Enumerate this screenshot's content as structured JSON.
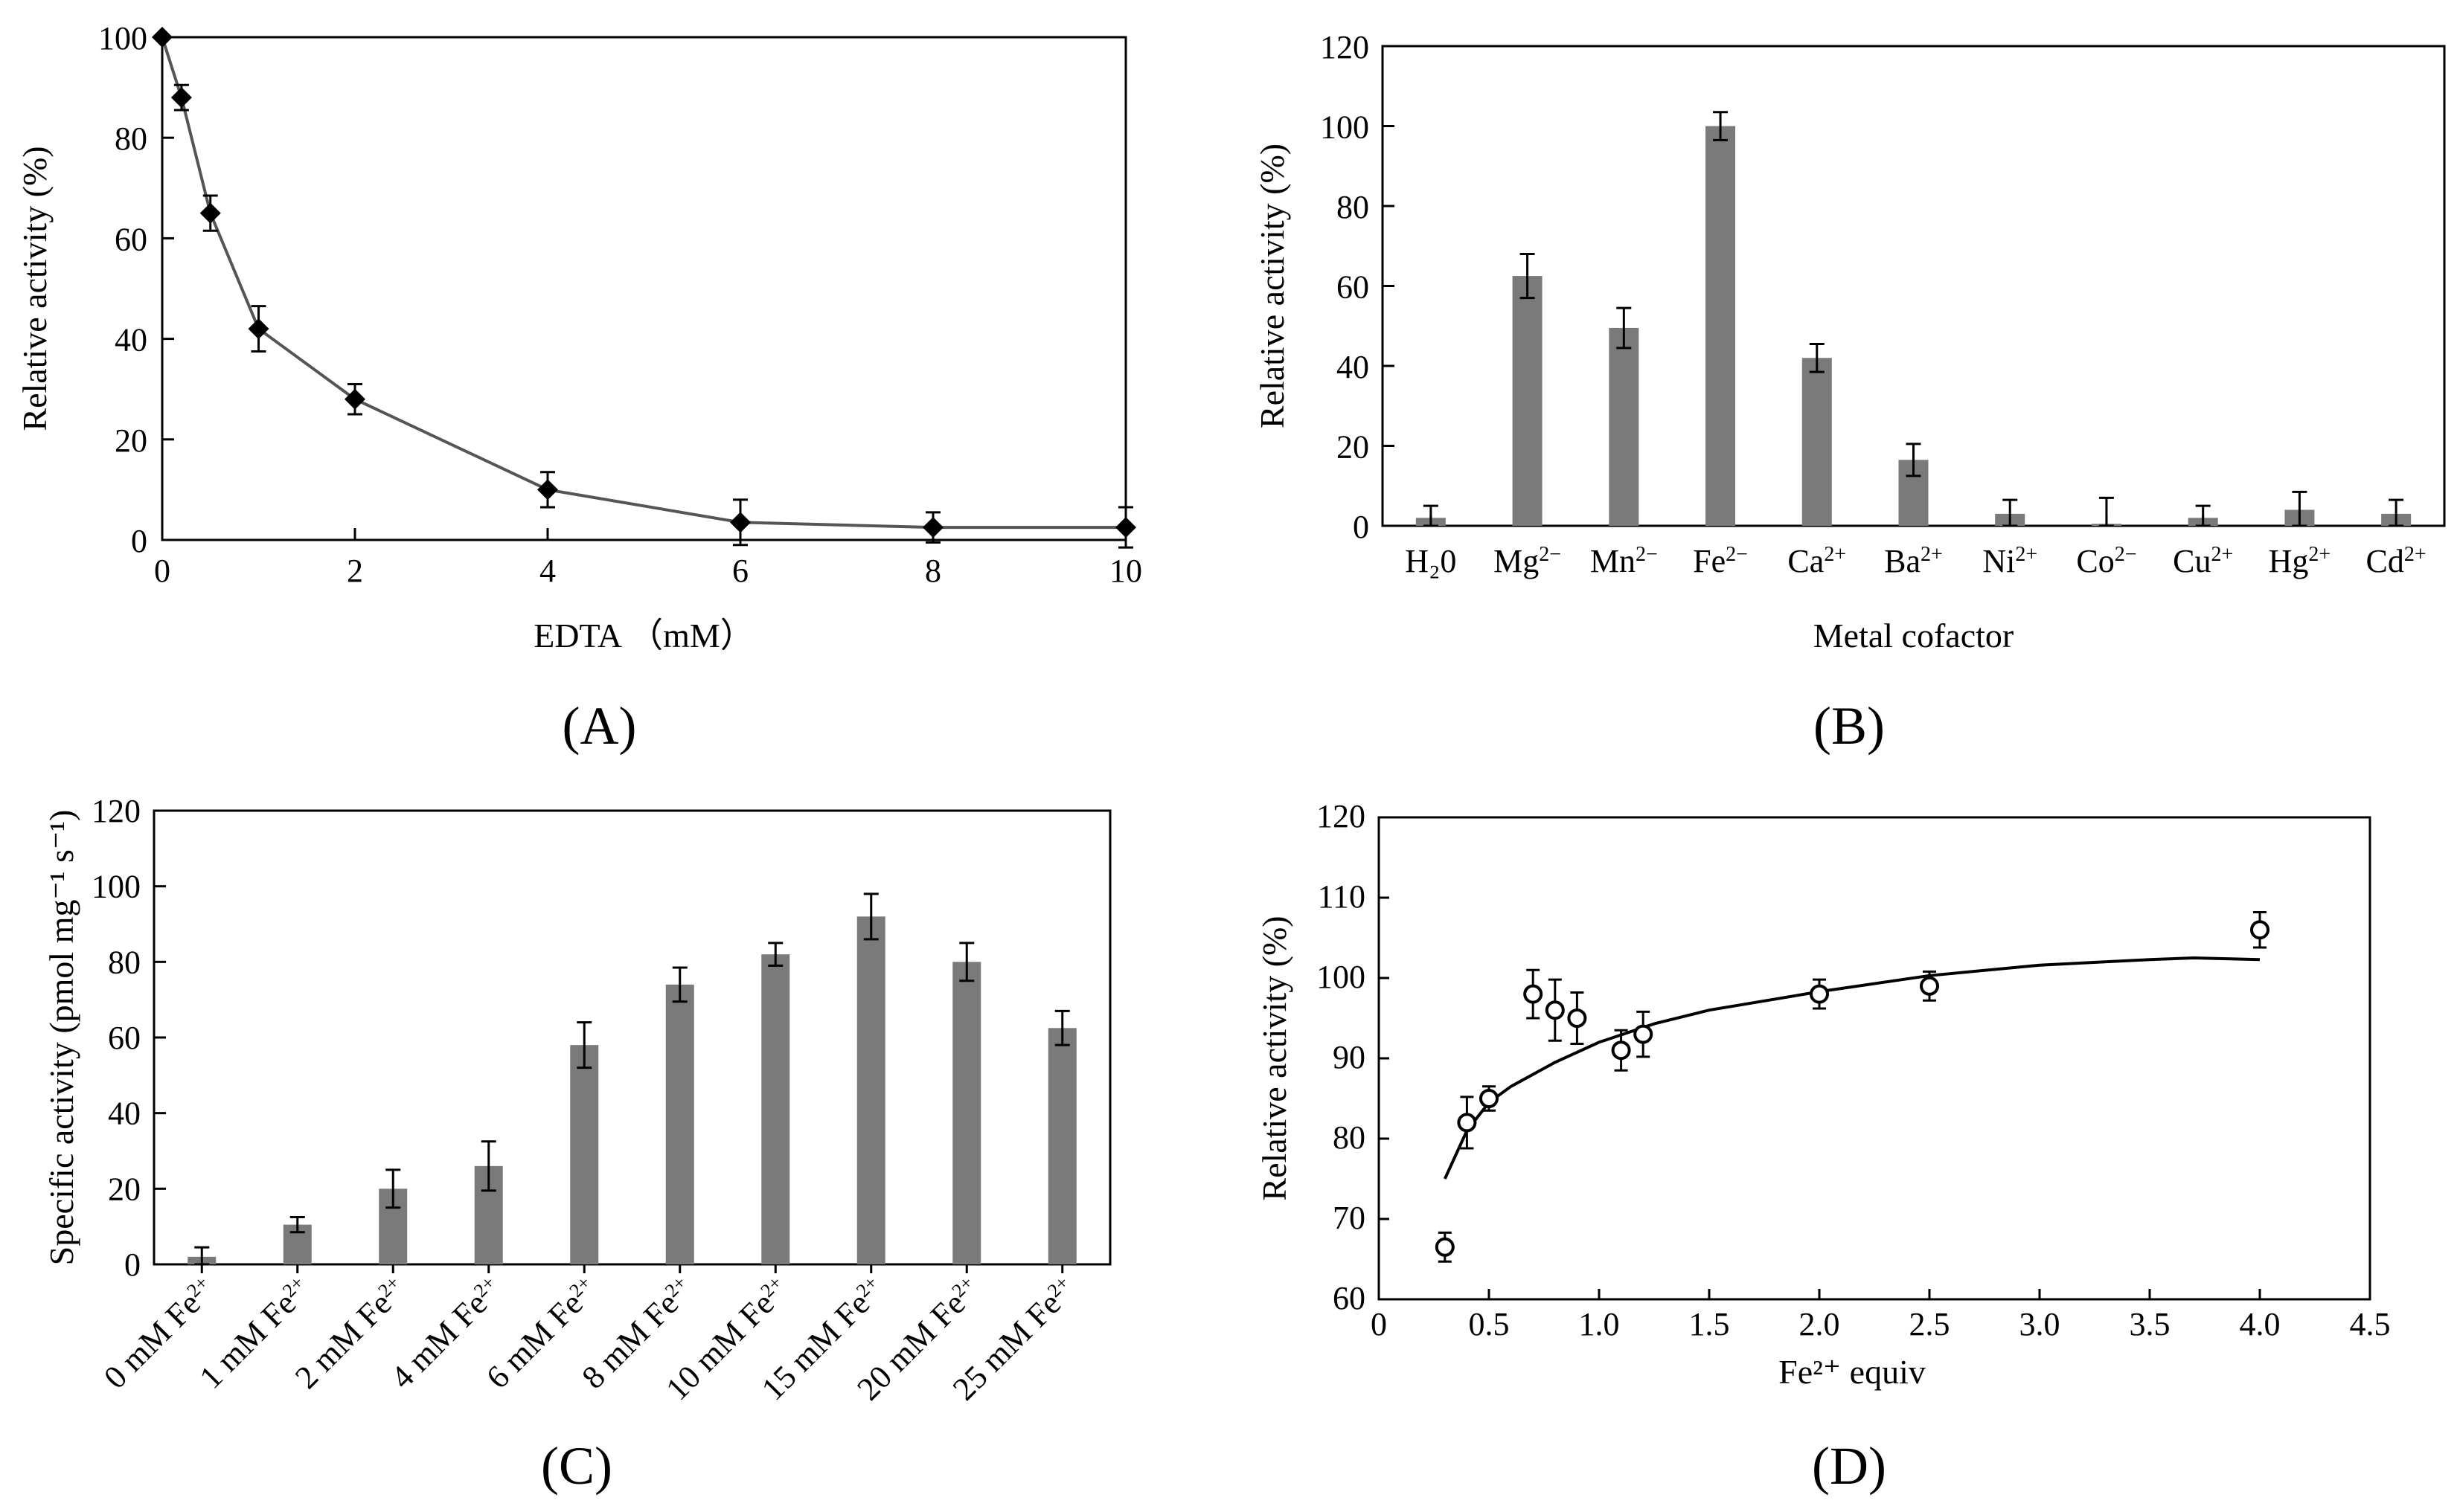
{
  "chart_data": [
    {
      "id": "A",
      "type": "line",
      "panel_label": "(A)",
      "xlabel": "EDTA （mM）",
      "ylabel": "Relative activity (%)",
      "xlim": [
        0,
        10
      ],
      "ylim": [
        0,
        100
      ],
      "xticks": [
        0,
        2,
        4,
        6,
        8,
        10
      ],
      "yticks": [
        0,
        20,
        40,
        60,
        80,
        100
      ],
      "series": [
        {
          "name": "activity",
          "x": [
            0,
            0.2,
            0.5,
            1,
            2,
            4,
            6,
            8,
            10
          ],
          "values": [
            100,
            88,
            65,
            42,
            28,
            10,
            3.5,
            2.5,
            2.5
          ],
          "errors": [
            0,
            2.5,
            3.5,
            4.5,
            3,
            3.5,
            4.5,
            3,
            4
          ]
        }
      ]
    },
    {
      "id": "B",
      "type": "bar",
      "panel_label": "(B)",
      "xlabel": "Metal cofactor",
      "ylabel": "Relative activity (%)",
      "ylim": [
        0,
        120
      ],
      "yticks": [
        0,
        20,
        40,
        60,
        80,
        100,
        120
      ],
      "categories": [
        {
          "base": "H₂0",
          "sup": ""
        },
        {
          "base": "Mg",
          "sup": "2−"
        },
        {
          "base": "Mn",
          "sup": "2−"
        },
        {
          "base": "Fe",
          "sup": "2−"
        },
        {
          "base": "Ca",
          "sup": "2+"
        },
        {
          "base": "Ba",
          "sup": "2+"
        },
        {
          "base": "Ni",
          "sup": "2+"
        },
        {
          "base": "Co",
          "sup": "2−"
        },
        {
          "base": "Cu",
          "sup": "2+"
        },
        {
          "base": "Hg",
          "sup": "2+"
        },
        {
          "base": "Cd",
          "sup": "2+"
        }
      ],
      "values": [
        2,
        62.5,
        49.5,
        100,
        42,
        16.5,
        3,
        0.5,
        2,
        4,
        3
      ],
      "errors": [
        3,
        5.5,
        5,
        3.5,
        3.5,
        4,
        3.5,
        6.5,
        3,
        4.5,
        3.5
      ]
    },
    {
      "id": "C",
      "type": "bar",
      "panel_label": "(C)",
      "xlabel": "",
      "ylabel": "Specific activity (pmol mg⁻¹ s⁻¹)",
      "ylim": [
        0,
        120
      ],
      "yticks": [
        0,
        20,
        40,
        60,
        80,
        100,
        120
      ],
      "categories": [
        {
          "base": "0 mM Fe",
          "sup": "2+"
        },
        {
          "base": "1 mM Fe",
          "sup": "2+"
        },
        {
          "base": "2 mM Fe",
          "sup": "2+"
        },
        {
          "base": "4 mM Fe",
          "sup": "2+"
        },
        {
          "base": "6 mM Fe",
          "sup": "2+"
        },
        {
          "base": "8 mM Fe",
          "sup": "2+"
        },
        {
          "base": "10 mM Fe",
          "sup": "2+"
        },
        {
          "base": "15 mM Fe",
          "sup": "2+"
        },
        {
          "base": "20 mM Fe",
          "sup": "2+"
        },
        {
          "base": "25 mM Fe",
          "sup": "2+"
        }
      ],
      "values": [
        2,
        10.5,
        20,
        26,
        58,
        74,
        82,
        92,
        80,
        62.5
      ],
      "errors": [
        2.5,
        2,
        5,
        6.5,
        6,
        4.5,
        3,
        6,
        5,
        4.5
      ]
    },
    {
      "id": "D",
      "type": "scatter",
      "panel_label": "(D)",
      "xlabel": "Fe²⁺ equiv",
      "ylabel": "Relative activity (%)",
      "xlim": [
        0,
        4.5
      ],
      "ylim": [
        60,
        120
      ],
      "xticks": [
        "0",
        "0.5",
        "1.0",
        "1.5",
        "2.0",
        "2.5",
        "3.0",
        "3.5",
        "4.0",
        "4.5"
      ],
      "yticks": [
        60,
        70,
        80,
        90,
        100,
        110,
        120
      ],
      "points": {
        "x": [
          0.3,
          0.4,
          0.5,
          0.7,
          0.8,
          0.9,
          1.1,
          1.2,
          2.0,
          2.5,
          4.0
        ],
        "values": [
          66.5,
          82,
          85,
          98,
          96,
          95,
          91,
          93,
          98,
          99,
          106
        ],
        "errors": [
          1.8,
          3.2,
          1.5,
          3,
          3.8,
          3.2,
          2.5,
          2.8,
          1.8,
          1.8,
          2.2
        ]
      },
      "fit": {
        "x": [
          0.3,
          0.4,
          0.5,
          0.6,
          0.8,
          1.0,
          1.25,
          1.5,
          2.0,
          2.5,
          3.0,
          3.5,
          3.7,
          4.0
        ],
        "values": [
          75,
          81,
          84.5,
          86.5,
          89.5,
          92,
          94.3,
          96,
          98.3,
          100.3,
          101.6,
          102.3,
          102.5,
          102.3
        ]
      }
    }
  ]
}
